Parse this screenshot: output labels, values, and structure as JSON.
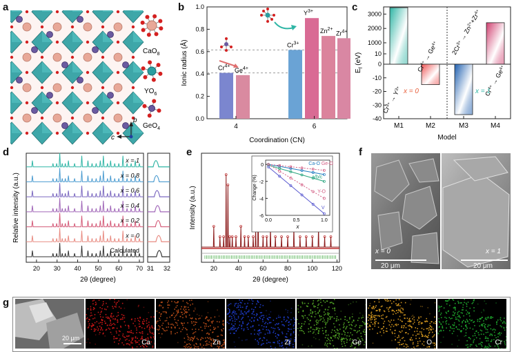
{
  "panels": {
    "a": "a",
    "b": "b",
    "c": "c",
    "d": "d",
    "e": "e",
    "f": "f",
    "g": "g"
  },
  "panel_a": {
    "legend": [
      {
        "label": "CaO",
        "sub": "8"
      },
      {
        "label": "YO",
        "sub": "6"
      },
      {
        "label": "GeO",
        "sub": "4"
      }
    ],
    "axes": {
      "b": "b",
      "c": "c"
    },
    "colors": {
      "polyhedra": "#2a9ea0",
      "ca": "#e8a898",
      "ge": "#6a5aa0",
      "oxygen": "#d42020"
    }
  },
  "chart_data": [
    {
      "id": "b",
      "type": "bar",
      "title": "",
      "xlabel": "Coordination (CN)",
      "ylabel": "Ionic radius (Å)",
      "ylim": [
        0,
        1.0
      ],
      "yticks": [
        "0.0",
        "0.2",
        "0.4",
        "0.6",
        "0.8",
        "1.0"
      ],
      "groups": [
        {
          "label": "4",
          "bars": [
            {
              "ion": "Cr",
              "charge": "4+",
              "value": 0.41,
              "color": "#7b86cf"
            },
            {
              "ion": "Ge",
              "charge": "4+",
              "value": 0.39,
              "color": "#d98aa0"
            }
          ]
        },
        {
          "label": "6",
          "bars": [
            {
              "ion": "Cr",
              "charge": "3+",
              "value": 0.615,
              "color": "#6aa3d5"
            },
            {
              "ion": "Y",
              "charge": "3+",
              "value": 0.9,
              "color": "#d96b94"
            },
            {
              "ion": "Zn",
              "charge": "2+",
              "value": 0.74,
              "color": "#db839c"
            },
            {
              "ion": "Zr",
              "charge": "4+",
              "value": 0.72,
              "color": "#d987a3"
            }
          ]
        }
      ],
      "ref_lines": [
        0.615,
        0.41
      ]
    },
    {
      "id": "c",
      "type": "bar",
      "xlabel": "Model",
      "ylabel": "E",
      "ylabel_sub": "f",
      "ylabel_unit": " (eV)",
      "ylim": [
        -40,
        3500
      ],
      "yticks": [
        "-40",
        "-30",
        "-20",
        "-10",
        "0",
        "10",
        "1000",
        "2000",
        "3000"
      ],
      "categories": [
        "M1",
        "M2",
        "M3",
        "M4"
      ],
      "values": [
        3450,
        -15,
        -37,
        2400
      ],
      "annotations": [
        {
          "ion1": "Cr",
          "c1": "3+",
          "ion2": "Y",
          "c2": "3+"
        },
        {
          "ion1": "Cr",
          "c1": "4+",
          "ion2": "Ge",
          "c2": "4+"
        },
        {
          "pre": "2",
          "ion1": "Cr",
          "c1": "3+",
          "ion2": "Zn",
          "c2": "2+",
          "plus": "+Zr",
          "c3": "4+"
        },
        {
          "ion1": "Cr",
          "c1": "4+",
          "ion2": "Ge",
          "c2": "4+"
        }
      ],
      "region_labels": [
        "x = 0",
        "x = 1"
      ]
    },
    {
      "id": "d",
      "type": "line",
      "xlabel": "2θ (degree)",
      "ylabel": "Relative intensity (a.u.)",
      "xticks": [
        "20",
        "30",
        "40",
        "50",
        "60",
        "70"
      ],
      "xticks_zoom": [
        "31",
        "32"
      ],
      "series": [
        {
          "name": "x = 1",
          "color": "#2fb5a5"
        },
        {
          "name": "x = 0.8",
          "color": "#4a9bd0"
        },
        {
          "name": "x = 0.6",
          "color": "#7b68c0"
        },
        {
          "name": "x = 0.4",
          "color": "#a066b8"
        },
        {
          "name": "x = 0.2",
          "color": "#d45a78"
        },
        {
          "name": "x = 0",
          "color": "#e88a80"
        },
        {
          "name": "Calculated",
          "color": "#333333"
        }
      ],
      "peaks": [
        18,
        28,
        29.8,
        31.3,
        32.5,
        34,
        35.5,
        38.5,
        42,
        45,
        47,
        49,
        51,
        52.5,
        54.5,
        56,
        58,
        60,
        62,
        64,
        66,
        68,
        70
      ]
    },
    {
      "id": "e",
      "type": "scatter",
      "xlabel": "2θ (degree)",
      "ylabel": "Intensity (a.u.)",
      "xticks": [
        "20",
        "40",
        "60",
        "80",
        "100",
        "120"
      ],
      "inset": {
        "xlabel": "x",
        "ylabel": "Change (%)",
        "xticks": [
          "0.0",
          "0.5",
          "1.0"
        ],
        "yticks": [
          "0",
          "-2",
          "-4",
          "-6"
        ],
        "series": [
          {
            "name": "Ca-O",
            "color": "#1f7bbf",
            "values": [
              [
                0,
                0
              ],
              [
                1,
                -1.2
              ]
            ]
          },
          {
            "name": "Ge-O",
            "color": "#d25a80",
            "values": [
              [
                0,
                0
              ],
              [
                1,
                -0.7
              ]
            ]
          },
          {
            "name": "a/b/c",
            "color": "#22a27a",
            "values": [
              [
                0,
                -0.1
              ],
              [
                1,
                -2.0
              ]
            ]
          },
          {
            "name": "Y-O",
            "color": "#d25a80",
            "values": [
              [
                0,
                0
              ],
              [
                1,
                -4.0
              ]
            ]
          },
          {
            "name": "V",
            "color": "#5a5ad0",
            "values": [
              [
                0,
                -0.3
              ],
              [
                1,
                -5.8
              ]
            ]
          }
        ]
      }
    }
  ],
  "panel_f": {
    "left": "x = 0",
    "right": "x = 1",
    "scale_left": "20 μm",
    "scale_right": "20 μm"
  },
  "panel_g": {
    "scale": "20 μm",
    "maps": [
      {
        "label": "Ca",
        "color": "#d81818"
      },
      {
        "label": "Zn",
        "color": "#c0501a"
      },
      {
        "label": "Zr",
        "color": "#2040d8"
      },
      {
        "label": "Ge",
        "color": "#58b028"
      },
      {
        "label": "O",
        "color": "#e0a020"
      },
      {
        "label": "Cr",
        "color": "#20b030"
      }
    ]
  }
}
